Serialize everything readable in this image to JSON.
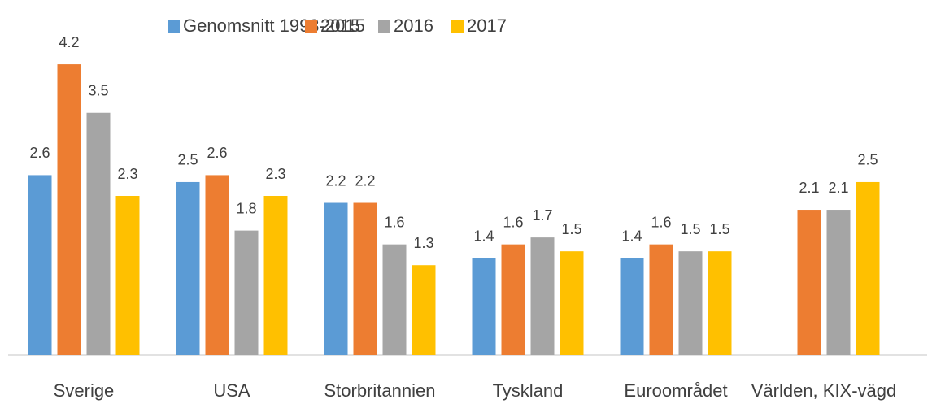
{
  "chart_data": {
    "type": "bar",
    "categories": [
      "Sverige",
      "USA",
      "Storbritannien",
      "Tyskland",
      "Euroområdet",
      "Världen, KIX-vägd"
    ],
    "series": [
      {
        "name": "Genomsnitt 1993-2015",
        "color": "#5b9bd5",
        "values": [
          2.6,
          2.5,
          2.2,
          1.4,
          1.4,
          null
        ]
      },
      {
        "name": "2015",
        "color": "#ed7d31",
        "values": [
          4.2,
          2.6,
          2.2,
          1.6,
          1.6,
          2.1
        ]
      },
      {
        "name": "2016",
        "color": "#a5a5a5",
        "values": [
          3.5,
          1.8,
          1.6,
          1.7,
          1.5,
          2.1
        ]
      },
      {
        "name": "2017",
        "color": "#ffc000",
        "values": [
          2.3,
          2.3,
          1.3,
          1.5,
          1.5,
          2.5
        ]
      }
    ],
    "ylim": [
      0,
      4.6
    ],
    "legend": "top"
  }
}
